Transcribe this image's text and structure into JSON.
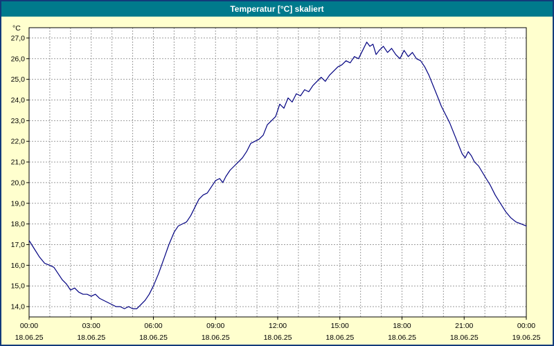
{
  "window": {
    "title": "Temperatur [°C] skaliert"
  },
  "colors": {
    "titlebar": "#007a8c",
    "window_border": "#123a7a",
    "background": "#ffffce",
    "plot_background": "#ffffff",
    "line": "#000080",
    "grid": "#9b9b9b"
  },
  "chart_data": {
    "type": "line",
    "title": "Temperatur [°C] skaliert",
    "y_unit_label": "°C",
    "xlabel": "",
    "ylabel": "Temperatur [°C]",
    "xlim": [
      0,
      24
    ],
    "ylim": [
      13.5,
      27.5
    ],
    "grid": "dashed, hourly vertical lines and 1.0 °C horizontal lines",
    "grid_color": "#9b9b9b",
    "legend": "none",
    "y_ticks": [
      {
        "value": 27,
        "label": "27,0"
      },
      {
        "value": 26,
        "label": "26,0"
      },
      {
        "value": 25,
        "label": "25,0"
      },
      {
        "value": 24,
        "label": "24,0"
      },
      {
        "value": 23,
        "label": "23,0"
      },
      {
        "value": 22,
        "label": "22,0"
      },
      {
        "value": 21,
        "label": "21,0"
      },
      {
        "value": 20,
        "label": "20,0"
      },
      {
        "value": 19,
        "label": "19,0"
      },
      {
        "value": 18,
        "label": "18,0"
      },
      {
        "value": 17,
        "label": "17,0"
      },
      {
        "value": 16,
        "label": "16,0"
      },
      {
        "value": 15,
        "label": "15,0"
      },
      {
        "value": 14,
        "label": "14,0"
      }
    ],
    "x_ticks": [
      {
        "hour": 0,
        "time": "00:00",
        "date": "18.06.25"
      },
      {
        "hour": 3,
        "time": "03:00",
        "date": "18.06.25"
      },
      {
        "hour": 6,
        "time": "06:00",
        "date": "18.06.25"
      },
      {
        "hour": 9,
        "time": "09:00",
        "date": "18.06.25"
      },
      {
        "hour": 12,
        "time": "12:00",
        "date": "18.06.25"
      },
      {
        "hour": 15,
        "time": "15:00",
        "date": "18.06.25"
      },
      {
        "hour": 18,
        "time": "18:00",
        "date": "18.06.25"
      },
      {
        "hour": 21,
        "time": "21:00",
        "date": "18.06.25"
      },
      {
        "hour": 24,
        "time": "00:00",
        "date": "19.06.25"
      }
    ],
    "series": [
      {
        "name": "Temperatur",
        "color": "#000080",
        "points": [
          [
            0,
            17.2
          ],
          [
            0.25,
            16.8
          ],
          [
            0.5,
            16.4
          ],
          [
            0.75,
            16.1
          ],
          [
            1,
            16.0
          ],
          [
            1.2,
            15.9
          ],
          [
            1.4,
            15.6
          ],
          [
            1.6,
            15.3
          ],
          [
            1.8,
            15.1
          ],
          [
            2,
            14.8
          ],
          [
            2.2,
            14.9
          ],
          [
            2.4,
            14.7
          ],
          [
            2.6,
            14.6
          ],
          [
            2.8,
            14.6
          ],
          [
            3,
            14.5
          ],
          [
            3.2,
            14.6
          ],
          [
            3.4,
            14.4
          ],
          [
            3.6,
            14.3
          ],
          [
            3.8,
            14.2
          ],
          [
            4,
            14.1
          ],
          [
            4.2,
            14.0
          ],
          [
            4.4,
            14.0
          ],
          [
            4.6,
            13.9
          ],
          [
            4.8,
            14.0
          ],
          [
            5,
            13.9
          ],
          [
            5.2,
            13.9
          ],
          [
            5.4,
            14.1
          ],
          [
            5.6,
            14.3
          ],
          [
            5.8,
            14.6
          ],
          [
            6,
            15.0
          ],
          [
            6.25,
            15.6
          ],
          [
            6.5,
            16.3
          ],
          [
            6.75,
            17.0
          ],
          [
            7,
            17.6
          ],
          [
            7.2,
            17.9
          ],
          [
            7.4,
            18.0
          ],
          [
            7.6,
            18.1
          ],
          [
            7.8,
            18.4
          ],
          [
            8,
            18.8
          ],
          [
            8.2,
            19.2
          ],
          [
            8.4,
            19.4
          ],
          [
            8.6,
            19.5
          ],
          [
            8.8,
            19.8
          ],
          [
            9,
            20.1
          ],
          [
            9.2,
            20.2
          ],
          [
            9.35,
            20.0
          ],
          [
            9.5,
            20.3
          ],
          [
            9.7,
            20.6
          ],
          [
            9.9,
            20.8
          ],
          [
            10.1,
            21.0
          ],
          [
            10.3,
            21.2
          ],
          [
            10.5,
            21.5
          ],
          [
            10.7,
            21.9
          ],
          [
            10.9,
            22.0
          ],
          [
            11.1,
            22.1
          ],
          [
            11.3,
            22.3
          ],
          [
            11.5,
            22.8
          ],
          [
            11.7,
            23.0
          ],
          [
            11.9,
            23.2
          ],
          [
            12.1,
            23.8
          ],
          [
            12.3,
            23.6
          ],
          [
            12.5,
            24.1
          ],
          [
            12.7,
            23.9
          ],
          [
            12.9,
            24.3
          ],
          [
            13.1,
            24.2
          ],
          [
            13.3,
            24.5
          ],
          [
            13.5,
            24.4
          ],
          [
            13.7,
            24.7
          ],
          [
            13.9,
            24.9
          ],
          [
            14.1,
            25.1
          ],
          [
            14.3,
            24.9
          ],
          [
            14.5,
            25.2
          ],
          [
            14.7,
            25.4
          ],
          [
            14.9,
            25.6
          ],
          [
            15.1,
            25.7
          ],
          [
            15.3,
            25.9
          ],
          [
            15.5,
            25.8
          ],
          [
            15.7,
            26.1
          ],
          [
            15.9,
            26.0
          ],
          [
            16.1,
            26.4
          ],
          [
            16.3,
            26.8
          ],
          [
            16.45,
            26.6
          ],
          [
            16.6,
            26.7
          ],
          [
            16.75,
            26.2
          ],
          [
            16.9,
            26.4
          ],
          [
            17.1,
            26.6
          ],
          [
            17.3,
            26.3
          ],
          [
            17.5,
            26.5
          ],
          [
            17.7,
            26.2
          ],
          [
            17.9,
            26.0
          ],
          [
            18.1,
            26.4
          ],
          [
            18.3,
            26.1
          ],
          [
            18.5,
            26.3
          ],
          [
            18.7,
            26.0
          ],
          [
            18.9,
            25.9
          ],
          [
            19.1,
            25.6
          ],
          [
            19.3,
            25.2
          ],
          [
            19.5,
            24.7
          ],
          [
            19.7,
            24.2
          ],
          [
            19.9,
            23.7
          ],
          [
            20.1,
            23.3
          ],
          [
            20.3,
            22.9
          ],
          [
            20.5,
            22.4
          ],
          [
            20.7,
            21.9
          ],
          [
            20.9,
            21.4
          ],
          [
            21.05,
            21.2
          ],
          [
            21.2,
            21.5
          ],
          [
            21.35,
            21.3
          ],
          [
            21.5,
            21.0
          ],
          [
            21.7,
            20.8
          ],
          [
            22,
            20.3
          ],
          [
            22.25,
            19.9
          ],
          [
            22.5,
            19.4
          ],
          [
            22.75,
            19.0
          ],
          [
            23,
            18.6
          ],
          [
            23.25,
            18.3
          ],
          [
            23.5,
            18.1
          ],
          [
            23.75,
            18.0
          ],
          [
            24,
            17.9
          ]
        ]
      }
    ]
  }
}
